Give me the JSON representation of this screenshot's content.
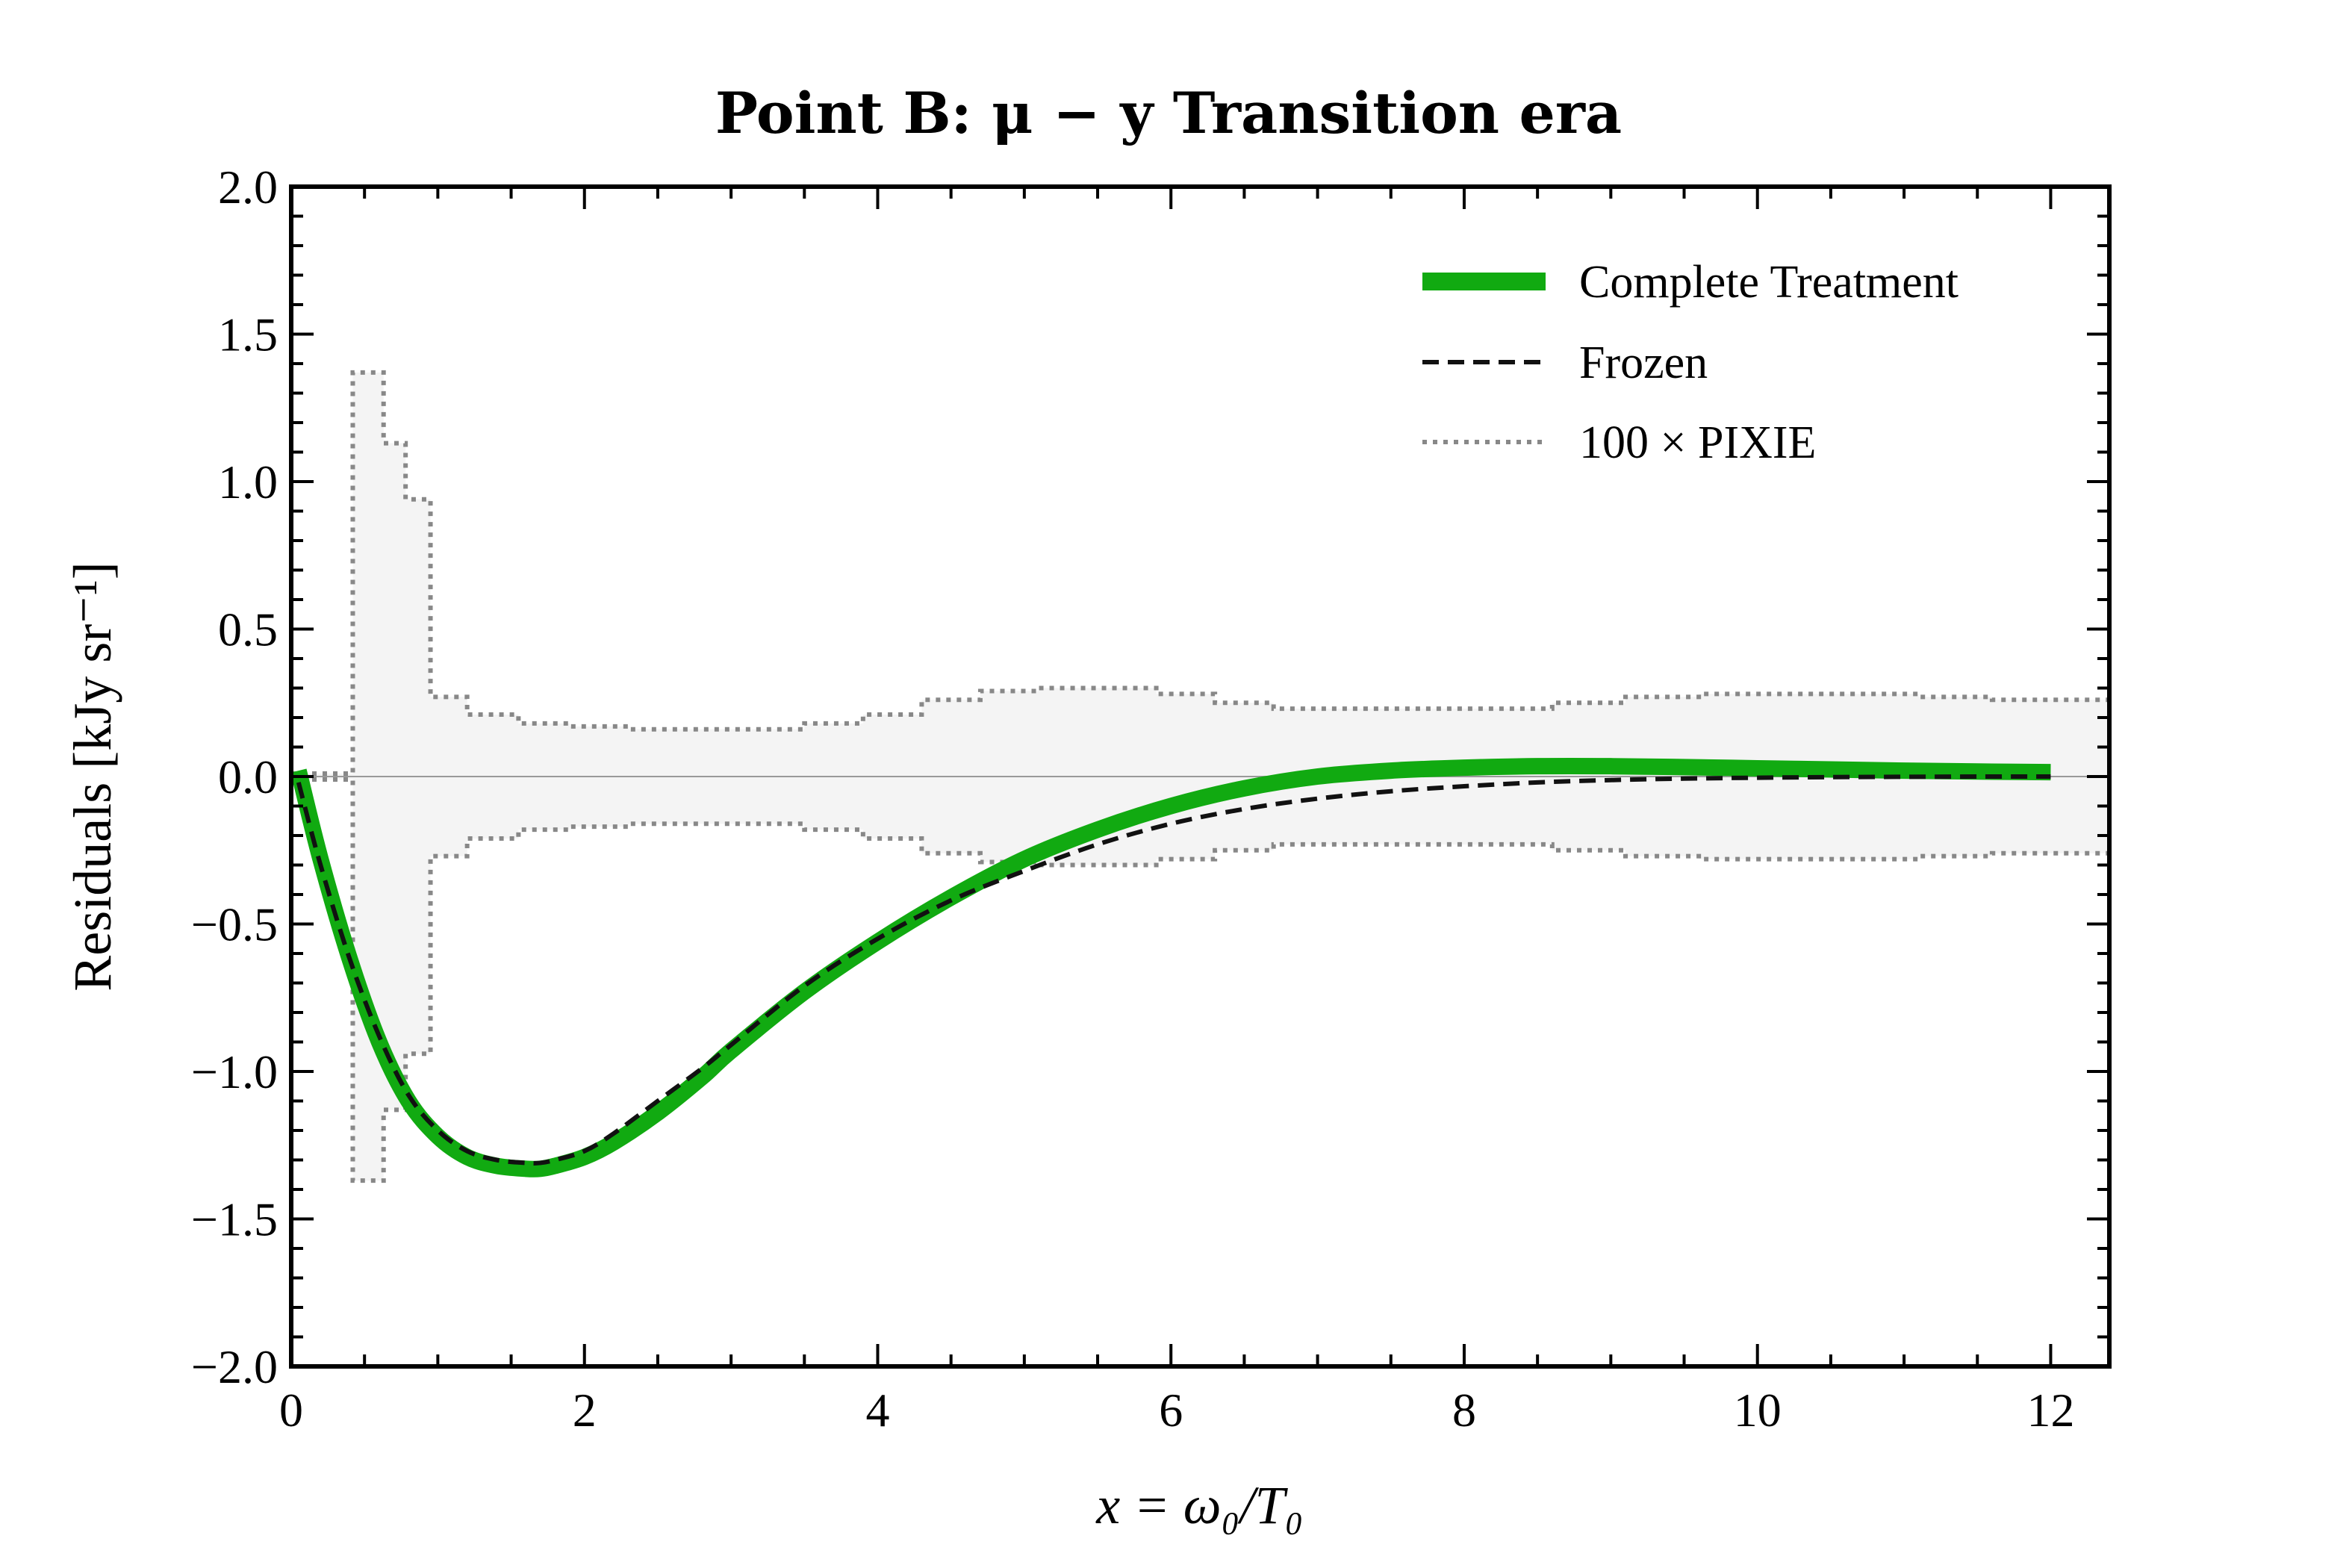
{
  "chart_data": {
    "type": "line",
    "title": "Point B: μ − y Transition era",
    "xlabel": "x = ω₀/T₀",
    "ylabel": "Residuals [kJy sr⁻¹]",
    "xlim": [
      0,
      12.4
    ],
    "ylim": [
      -2.0,
      2.0
    ],
    "xticks": [
      0,
      2,
      4,
      6,
      8,
      10,
      12
    ],
    "xtick_labels": [
      "0",
      "2",
      "4",
      "6",
      "8",
      "10",
      "12"
    ],
    "yticks": [
      2.0,
      1.5,
      1.0,
      0.5,
      0.0,
      -0.5,
      -1.0,
      -1.5,
      -2.0
    ],
    "ytick_labels": [
      "2.0",
      "1.5",
      "1.0",
      "0.5",
      "0.0",
      "−0.5",
      "−1.0",
      "−1.5",
      "−2.0"
    ],
    "grid": false,
    "legend_position": "top-right",
    "colors": {
      "complete": "#11aa11",
      "frozen": "#111111",
      "pixie": "#888888",
      "band_fill": "#f4f4f4",
      "zero_line": "#999999"
    },
    "series": [
      {
        "name": "Complete Treatment",
        "style": "solid-thick",
        "x": [
          0.05,
          0.2,
          0.4,
          0.6,
          0.8,
          1.0,
          1.2,
          1.4,
          1.6,
          1.7,
          1.8,
          2.0,
          2.2,
          2.5,
          2.8,
          3.0,
          3.5,
          4.0,
          4.5,
          5.0,
          5.5,
          6.0,
          6.5,
          7.0,
          7.5,
          8.0,
          8.5,
          9.0,
          9.5,
          10.0,
          10.5,
          11.0,
          11.5,
          12.0
        ],
        "y": [
          0.02,
          -0.28,
          -0.62,
          -0.9,
          -1.1,
          -1.22,
          -1.29,
          -1.32,
          -1.33,
          -1.33,
          -1.32,
          -1.29,
          -1.24,
          -1.14,
          -1.02,
          -0.93,
          -0.73,
          -0.56,
          -0.41,
          -0.28,
          -0.18,
          -0.1,
          -0.04,
          0.0,
          0.02,
          0.03,
          0.035,
          0.035,
          0.032,
          0.028,
          0.024,
          0.02,
          0.017,
          0.015
        ]
      },
      {
        "name": "Frozen",
        "style": "dashed",
        "x": [
          0.05,
          0.2,
          0.4,
          0.6,
          0.8,
          1.0,
          1.2,
          1.4,
          1.6,
          1.7,
          1.8,
          2.0,
          2.2,
          2.5,
          2.8,
          3.0,
          3.5,
          4.0,
          4.5,
          5.0,
          5.5,
          6.0,
          6.5,
          7.0,
          7.5,
          8.0,
          8.5,
          9.0,
          9.5,
          10.0,
          10.5,
          11.0,
          11.5,
          12.0
        ],
        "y": [
          -0.02,
          -0.3,
          -0.62,
          -0.88,
          -1.08,
          -1.2,
          -1.27,
          -1.3,
          -1.31,
          -1.31,
          -1.3,
          -1.27,
          -1.21,
          -1.1,
          -0.99,
          -0.91,
          -0.71,
          -0.55,
          -0.42,
          -0.32,
          -0.23,
          -0.16,
          -0.11,
          -0.075,
          -0.05,
          -0.033,
          -0.02,
          -0.012,
          -0.007,
          -0.004,
          -0.002,
          -0.001,
          0.0,
          0.0
        ]
      }
    ],
    "noise_band": {
      "name": "100 × PIXIE",
      "style": "dotted-step",
      "edges": [
        0.0,
        0.42,
        0.63,
        0.78,
        0.95,
        1.2,
        1.55,
        1.9,
        2.3,
        2.7,
        3.1,
        3.5,
        3.9,
        4.3,
        4.7,
        5.1,
        5.5,
        5.9,
        6.3,
        6.7,
        7.1,
        7.6,
        8.1,
        8.6,
        9.1,
        9.6,
        10.1,
        10.6,
        11.1,
        11.6,
        12.1,
        12.4
      ],
      "values": [
        0.01,
        1.37,
        1.13,
        0.94,
        0.27,
        0.21,
        0.18,
        0.17,
        0.16,
        0.16,
        0.16,
        0.18,
        0.21,
        0.26,
        0.29,
        0.3,
        0.3,
        0.28,
        0.25,
        0.23,
        0.23,
        0.23,
        0.23,
        0.25,
        0.27,
        0.28,
        0.28,
        0.28,
        0.27,
        0.26,
        0.26
      ]
    }
  }
}
